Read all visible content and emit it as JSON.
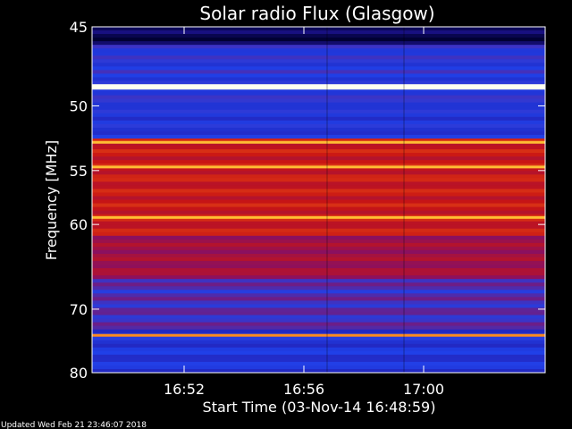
{
  "chart_data": {
    "type": "heatmap",
    "title": "Solar radio Flux (Glasgow)",
    "xlabel": "Start Time (03-Nov-14 16:48:59)",
    "ylabel": "Frequency [MHz]",
    "footer": "Updated Wed Feb 21 23:46:07 2018",
    "x_ticks": [
      "16:52",
      "16:56",
      "17:00"
    ],
    "y_ticks": [
      45,
      50,
      55,
      60,
      70,
      80
    ],
    "y_scale": "reciprocal",
    "ylim": [
      45,
      80
    ],
    "colormap": "blue-red-yellow-white",
    "bright_bands_mhz": [
      48.7,
      52.7,
      54.7,
      59.3,
      73.8
    ],
    "colors": {
      "background": "#000000",
      "text": "#ffffff",
      "low": "#2a1aa0",
      "mid": "#c01010",
      "high": "#ffe040",
      "peak": "#fffff0"
    }
  }
}
